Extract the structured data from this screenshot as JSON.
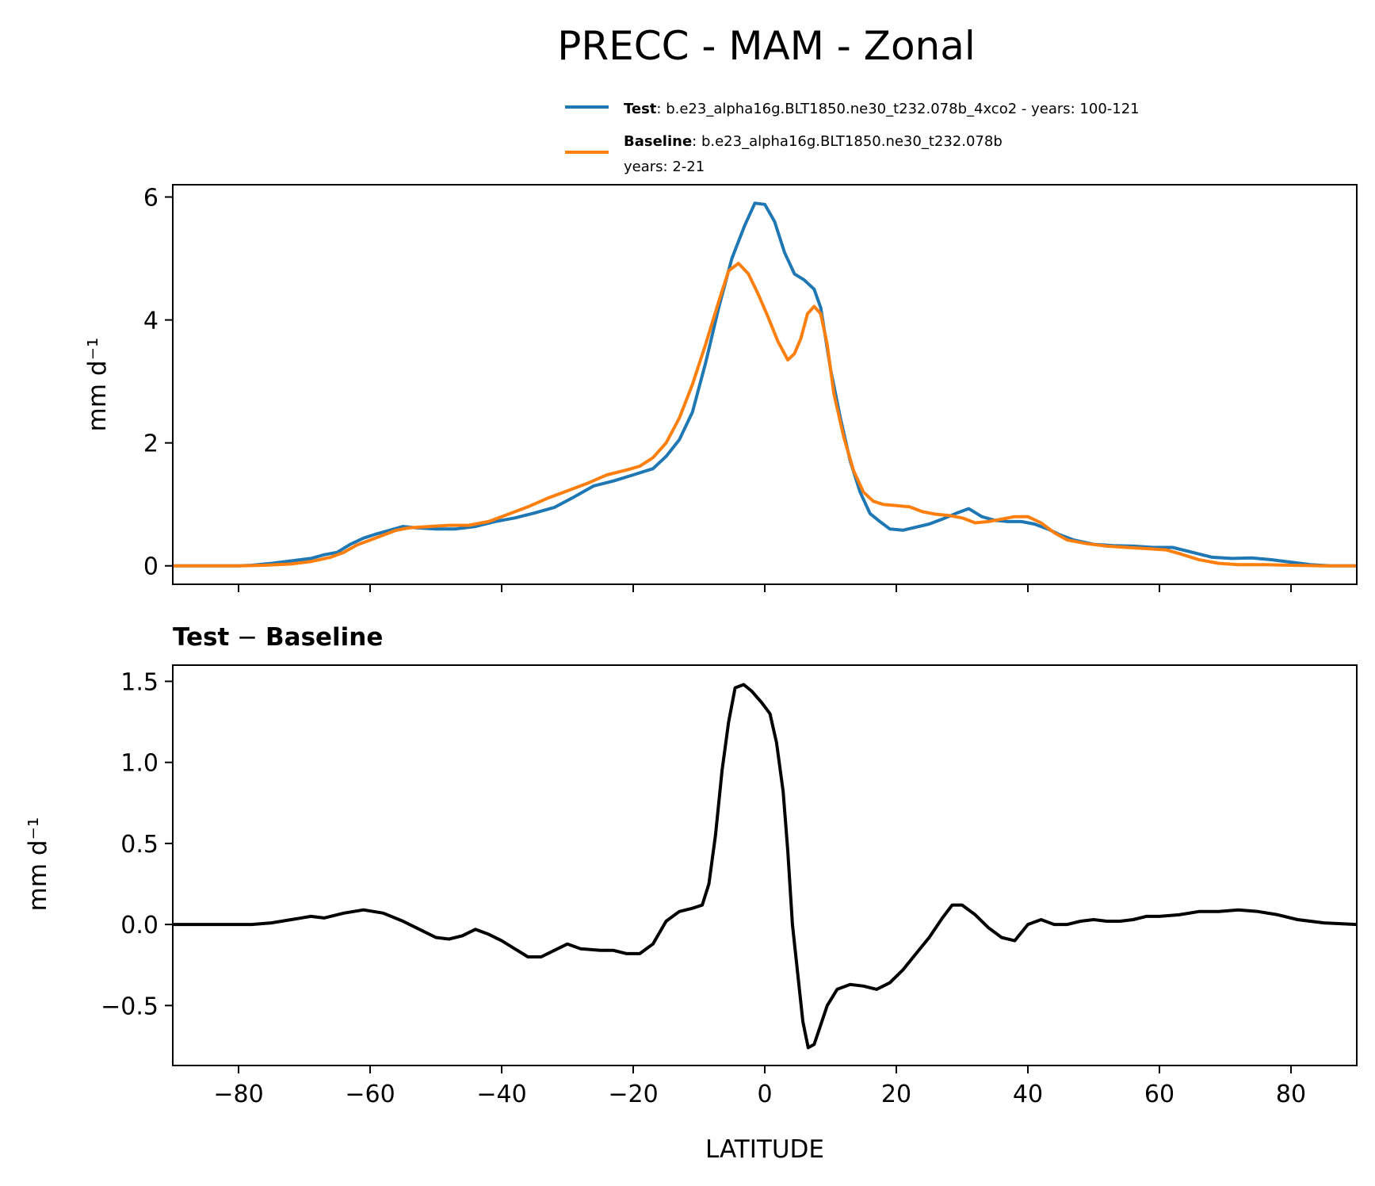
{
  "chart_data": {
    "title": "PRECC - MAM - Zonal",
    "xlabel": "LATITUDE",
    "xlim": [
      -90,
      90
    ],
    "xticks": [
      -80,
      -60,
      -40,
      -20,
      0,
      20,
      40,
      60,
      80
    ],
    "xtick_labels": [
      "−80",
      "−60",
      "−40",
      "−20",
      "0",
      "20",
      "40",
      "60",
      "80"
    ],
    "legend": {
      "placement": "above-top",
      "entries": [
        {
          "bold": "Test",
          "text": ": b.e23_alpha16g.BLT1850.ne30_t232.078b_4xco2 - years: 100-121",
          "color": "#1f77b4"
        },
        {
          "bold": "Baseline",
          "text": ": b.e23_alpha16g.BLT1850.ne30_t232.078b",
          "text2": "years: 2-21",
          "color": "#ff7f0e"
        }
      ]
    },
    "panels": [
      {
        "type": "line",
        "ylabel": "mm d⁻¹",
        "ylim": [
          -0.3,
          6.2
        ],
        "yticks": [
          0,
          2,
          4,
          6
        ],
        "ytick_labels": [
          "0",
          "2",
          "4",
          "6"
        ],
        "series": [
          {
            "name": "Test",
            "color": "#1f77b4",
            "points": [
              [
                -90,
                0
              ],
              [
                -80,
                0
              ],
              [
                -78,
                0.01
              ],
              [
                -75,
                0.04
              ],
              [
                -72,
                0.08
              ],
              [
                -69,
                0.12
              ],
              [
                -67,
                0.18
              ],
              [
                -65,
                0.22
              ],
              [
                -63,
                0.35
              ],
              [
                -61,
                0.45
              ],
              [
                -59,
                0.52
              ],
              [
                -57,
                0.58
              ],
              [
                -55,
                0.64
              ],
              [
                -53,
                0.62
              ],
              [
                -50,
                0.6
              ],
              [
                -47,
                0.6
              ],
              [
                -44,
                0.64
              ],
              [
                -41,
                0.72
              ],
              [
                -38,
                0.78
              ],
              [
                -35,
                0.86
              ],
              [
                -32,
                0.95
              ],
              [
                -29,
                1.12
              ],
              [
                -26,
                1.3
              ],
              [
                -23,
                1.38
              ],
              [
                -20,
                1.48
              ],
              [
                -17,
                1.58
              ],
              [
                -15,
                1.78
              ],
              [
                -13,
                2.05
              ],
              [
                -11,
                2.5
              ],
              [
                -9,
                3.3
              ],
              [
                -7,
                4.2
              ],
              [
                -5,
                5.0
              ],
              [
                -3,
                5.55
              ],
              [
                -1.5,
                5.9
              ],
              [
                0,
                5.88
              ],
              [
                1.5,
                5.6
              ],
              [
                3,
                5.1
              ],
              [
                4.5,
                4.75
              ],
              [
                6,
                4.65
              ],
              [
                7.5,
                4.5
              ],
              [
                8.5,
                4.2
              ],
              [
                10,
                3.2
              ],
              [
                11.5,
                2.4
              ],
              [
                13,
                1.7
              ],
              [
                14.5,
                1.2
              ],
              [
                16,
                0.85
              ],
              [
                17.5,
                0.72
              ],
              [
                19,
                0.6
              ],
              [
                21,
                0.58
              ],
              [
                23,
                0.63
              ],
              [
                25,
                0.68
              ],
              [
                27,
                0.76
              ],
              [
                29,
                0.85
              ],
              [
                31,
                0.93
              ],
              [
                33,
                0.8
              ],
              [
                35,
                0.74
              ],
              [
                37,
                0.72
              ],
              [
                39,
                0.72
              ],
              [
                41,
                0.68
              ],
              [
                43,
                0.6
              ],
              [
                45,
                0.5
              ],
              [
                47,
                0.42
              ],
              [
                50,
                0.35
              ],
              [
                53,
                0.33
              ],
              [
                56,
                0.32
              ],
              [
                59,
                0.3
              ],
              [
                62,
                0.3
              ],
              [
                65,
                0.22
              ],
              [
                68,
                0.14
              ],
              [
                71,
                0.12
              ],
              [
                74,
                0.13
              ],
              [
                77,
                0.1
              ],
              [
                80,
                0.06
              ],
              [
                83,
                0.02
              ],
              [
                86,
                0
              ],
              [
                90,
                0
              ]
            ]
          },
          {
            "name": "Baseline",
            "color": "#ff7f0e",
            "points": [
              [
                -90,
                0
              ],
              [
                -80,
                0
              ],
              [
                -76,
                0.01
              ],
              [
                -72,
                0.03
              ],
              [
                -69,
                0.07
              ],
              [
                -66,
                0.14
              ],
              [
                -64,
                0.22
              ],
              [
                -62,
                0.34
              ],
              [
                -60,
                0.42
              ],
              [
                -58,
                0.5
              ],
              [
                -56,
                0.58
              ],
              [
                -54,
                0.62
              ],
              [
                -51,
                0.64
              ],
              [
                -48,
                0.66
              ],
              [
                -45,
                0.66
              ],
              [
                -42,
                0.72
              ],
              [
                -39,
                0.84
              ],
              [
                -36,
                0.96
              ],
              [
                -33,
                1.1
              ],
              [
                -30,
                1.22
              ],
              [
                -27,
                1.34
              ],
              [
                -24,
                1.48
              ],
              [
                -21,
                1.56
              ],
              [
                -19,
                1.62
              ],
              [
                -17,
                1.76
              ],
              [
                -15,
                2.0
              ],
              [
                -13,
                2.4
              ],
              [
                -11,
                2.95
              ],
              [
                -9,
                3.6
              ],
              [
                -7,
                4.3
              ],
              [
                -5.5,
                4.8
              ],
              [
                -4,
                4.92
              ],
              [
                -2.5,
                4.75
              ],
              [
                -1,
                4.42
              ],
              [
                0.5,
                4.05
              ],
              [
                2,
                3.65
              ],
              [
                3.5,
                3.35
              ],
              [
                4.5,
                3.45
              ],
              [
                5.5,
                3.7
              ],
              [
                6.5,
                4.1
              ],
              [
                7.5,
                4.22
              ],
              [
                8.5,
                4.1
              ],
              [
                9.5,
                3.6
              ],
              [
                10.5,
                2.8
              ],
              [
                12,
                2.1
              ],
              [
                13.5,
                1.55
              ],
              [
                15,
                1.2
              ],
              [
                16.5,
                1.05
              ],
              [
                18,
                1.0
              ],
              [
                20,
                0.98
              ],
              [
                22,
                0.96
              ],
              [
                24,
                0.88
              ],
              [
                26,
                0.84
              ],
              [
                28,
                0.82
              ],
              [
                30,
                0.78
              ],
              [
                32,
                0.7
              ],
              [
                34,
                0.72
              ],
              [
                36,
                0.76
              ],
              [
                38,
                0.8
              ],
              [
                40,
                0.8
              ],
              [
                42,
                0.7
              ],
              [
                44,
                0.54
              ],
              [
                46,
                0.42
              ],
              [
                49,
                0.36
              ],
              [
                52,
                0.32
              ],
              [
                55,
                0.3
              ],
              [
                58,
                0.28
              ],
              [
                61,
                0.26
              ],
              [
                63,
                0.2
              ],
              [
                66,
                0.1
              ],
              [
                69,
                0.04
              ],
              [
                72,
                0.02
              ],
              [
                76,
                0.02
              ],
              [
                80,
                0.01
              ],
              [
                85,
                0
              ],
              [
                90,
                0
              ]
            ]
          }
        ]
      },
      {
        "type": "line",
        "subtitle_bold": "Test",
        "subtitle_sep": " − ",
        "subtitle_bold2": "Baseline",
        "ylabel": "mm d⁻¹",
        "ylim": [
          -0.87,
          1.6
        ],
        "yticks": [
          -0.5,
          0.0,
          0.5,
          1.0,
          1.5
        ],
        "ytick_labels": [
          "−0.5",
          "0.0",
          "0.5",
          "1.0",
          "1.5"
        ],
        "series": [
          {
            "name": "Test − Baseline",
            "color": "#000000",
            "points": [
              [
                -90,
                0
              ],
              [
                -78,
                0
              ],
              [
                -75,
                0.01
              ],
              [
                -72,
                0.03
              ],
              [
                -69,
                0.05
              ],
              [
                -67,
                0.04
              ],
              [
                -64,
                0.07
              ],
              [
                -61,
                0.09
              ],
              [
                -58,
                0.07
              ],
              [
                -55,
                0.02
              ],
              [
                -52,
                -0.04
              ],
              [
                -50,
                -0.08
              ],
              [
                -48,
                -0.09
              ],
              [
                -46,
                -0.07
              ],
              [
                -44,
                -0.03
              ],
              [
                -42,
                -0.06
              ],
              [
                -40,
                -0.1
              ],
              [
                -38,
                -0.15
              ],
              [
                -36,
                -0.2
              ],
              [
                -34,
                -0.2
              ],
              [
                -32,
                -0.16
              ],
              [
                -30,
                -0.12
              ],
              [
                -28,
                -0.15
              ],
              [
                -25,
                -0.16
              ],
              [
                -23,
                -0.16
              ],
              [
                -21,
                -0.18
              ],
              [
                -19,
                -0.18
              ],
              [
                -17,
                -0.12
              ],
              [
                -15,
                0.02
              ],
              [
                -13,
                0.08
              ],
              [
                -11,
                0.1
              ],
              [
                -9.5,
                0.12
              ],
              [
                -8.5,
                0.25
              ],
              [
                -7.5,
                0.55
              ],
              [
                -6.5,
                0.95
              ],
              [
                -5.5,
                1.25
              ],
              [
                -4.5,
                1.46
              ],
              [
                -3.2,
                1.48
              ],
              [
                -2,
                1.44
              ],
              [
                -0.5,
                1.37
              ],
              [
                0.8,
                1.3
              ],
              [
                1.8,
                1.12
              ],
              [
                2.8,
                0.82
              ],
              [
                3.5,
                0.45
              ],
              [
                4.2,
                0.0
              ],
              [
                5,
                -0.3
              ],
              [
                5.8,
                -0.6
              ],
              [
                6.6,
                -0.76
              ],
              [
                7.5,
                -0.74
              ],
              [
                8.5,
                -0.62
              ],
              [
                9.5,
                -0.5
              ],
              [
                11,
                -0.4
              ],
              [
                13,
                -0.37
              ],
              [
                15,
                -0.38
              ],
              [
                17,
                -0.4
              ],
              [
                19,
                -0.36
              ],
              [
                21,
                -0.28
              ],
              [
                23,
                -0.18
              ],
              [
                25,
                -0.08
              ],
              [
                27,
                0.04
              ],
              [
                28.5,
                0.12
              ],
              [
                30,
                0.12
              ],
              [
                32,
                0.06
              ],
              [
                34,
                -0.02
              ],
              [
                36,
                -0.08
              ],
              [
                38,
                -0.1
              ],
              [
                40,
                0.0
              ],
              [
                42,
                0.03
              ],
              [
                44,
                0.0
              ],
              [
                46,
                0.0
              ],
              [
                48,
                0.02
              ],
              [
                50,
                0.03
              ],
              [
                52,
                0.02
              ],
              [
                54,
                0.02
              ],
              [
                56,
                0.03
              ],
              [
                58,
                0.05
              ],
              [
                60,
                0.05
              ],
              [
                63,
                0.06
              ],
              [
                66,
                0.08
              ],
              [
                69,
                0.08
              ],
              [
                72,
                0.09
              ],
              [
                75,
                0.08
              ],
              [
                78,
                0.06
              ],
              [
                81,
                0.03
              ],
              [
                85,
                0.01
              ],
              [
                90,
                0
              ]
            ]
          }
        ]
      }
    ]
  }
}
